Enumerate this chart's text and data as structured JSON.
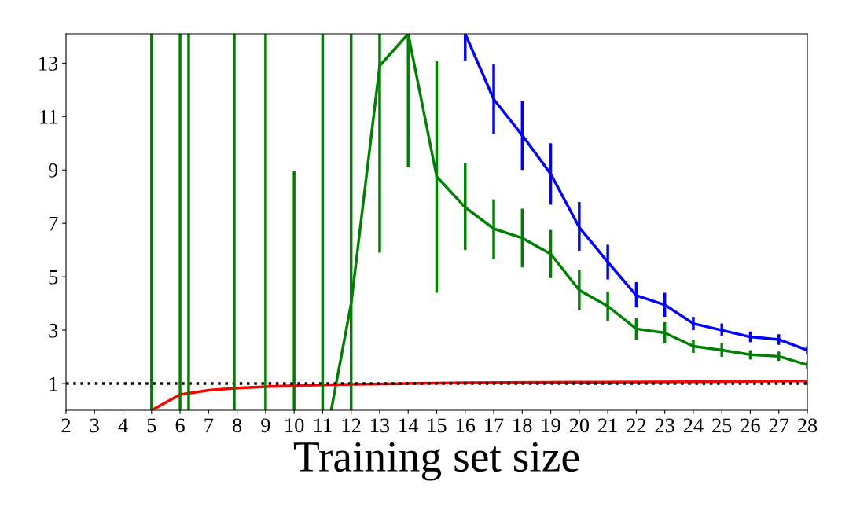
{
  "chart_data": {
    "type": "line",
    "xlabel": "Training set size",
    "xlim": [
      2,
      28
    ],
    "ylim": [
      0,
      14.1
    ],
    "xticks": [
      2,
      3,
      4,
      5,
      6,
      7,
      8,
      9,
      10,
      11,
      12,
      13,
      14,
      15,
      16,
      17,
      18,
      19,
      20,
      21,
      22,
      23,
      24,
      25,
      26,
      27,
      28
    ],
    "yticks": [
      1,
      3,
      5,
      7,
      9,
      11,
      13
    ],
    "grid": false,
    "legend": false,
    "ref_lines": [
      {
        "axis": "y",
        "value": 1,
        "color": "#000000",
        "line_style": "dotted"
      },
      {
        "axis": "x",
        "value": 5,
        "color": "#008000",
        "line_style": "solid"
      },
      {
        "axis": "x",
        "value": 6,
        "color": "#008000",
        "line_style": "solid"
      },
      {
        "axis": "x",
        "value": 6.3,
        "color": "#008000",
        "line_style": "solid"
      },
      {
        "axis": "x",
        "value": 7.9,
        "color": "#008000",
        "line_style": "solid"
      },
      {
        "axis": "x",
        "value": 9,
        "color": "#008000",
        "line_style": "solid"
      },
      {
        "axis": "x",
        "value": 11,
        "color": "#008000",
        "line_style": "solid"
      },
      {
        "axis": "x",
        "value": 12,
        "color": "#008000",
        "line_style": "solid"
      }
    ],
    "series": [
      {
        "color": "#008000",
        "x": [
          10,
          10
        ],
        "values": [
          0,
          8.9
        ]
      },
      {
        "color": "#008000",
        "x": [
          11.3,
          12,
          13,
          14,
          15,
          16,
          17,
          18,
          19,
          20,
          21,
          22,
          23,
          24,
          25,
          26,
          27,
          28
        ],
        "values": [
          0,
          4.0,
          12.9,
          14.1,
          8.75,
          7.6,
          6.8,
          6.45,
          5.85,
          4.5,
          3.9,
          3.05,
          2.9,
          2.4,
          2.25,
          2.08,
          2.02,
          1.7
        ],
        "errors": [
          null,
          null,
          [
            5.9,
            14.1
          ],
          [
            9.1,
            14.1
          ],
          [
            4.4,
            13.1
          ],
          [
            6.0,
            9.25
          ],
          [
            5.65,
            7.9
          ],
          [
            5.35,
            7.55
          ],
          [
            4.95,
            6.75
          ],
          [
            3.75,
            5.25
          ],
          [
            3.35,
            4.45
          ],
          [
            2.65,
            3.45
          ],
          [
            2.5,
            3.3
          ],
          [
            2.15,
            2.65
          ],
          [
            2.0,
            2.5
          ],
          [
            1.9,
            2.25
          ],
          [
            1.85,
            2.2
          ],
          [
            1.55,
            1.85
          ]
        ]
      },
      {
        "color": "#0000ff",
        "x": [
          16,
          17,
          18,
          19,
          20,
          21,
          22,
          23,
          24,
          25,
          26,
          27,
          28
        ],
        "values": [
          14.1,
          11.65,
          10.3,
          8.85,
          6.85,
          5.55,
          4.3,
          3.95,
          3.25,
          3.0,
          2.75,
          2.65,
          2.25
        ],
        "errors": [
          [
            13.1,
            14.1
          ],
          [
            10.35,
            12.95
          ],
          [
            9.0,
            11.6
          ],
          [
            7.7,
            10.0
          ],
          [
            5.95,
            7.8
          ],
          [
            4.9,
            6.2
          ],
          [
            3.85,
            4.8
          ],
          [
            3.5,
            4.4
          ],
          [
            3.0,
            3.5
          ],
          [
            2.8,
            3.25
          ],
          [
            2.55,
            2.95
          ],
          [
            2.45,
            2.85
          ],
          [
            2.1,
            2.4
          ]
        ]
      },
      {
        "color": "#ff0000",
        "x": [
          5,
          6,
          7,
          8,
          9,
          10,
          11,
          12,
          14,
          16,
          20,
          24,
          28
        ],
        "values": [
          0,
          0.59,
          0.75,
          0.83,
          0.88,
          0.92,
          0.95,
          0.97,
          1.0,
          1.03,
          1.05,
          1.07,
          1.1
        ]
      }
    ]
  }
}
